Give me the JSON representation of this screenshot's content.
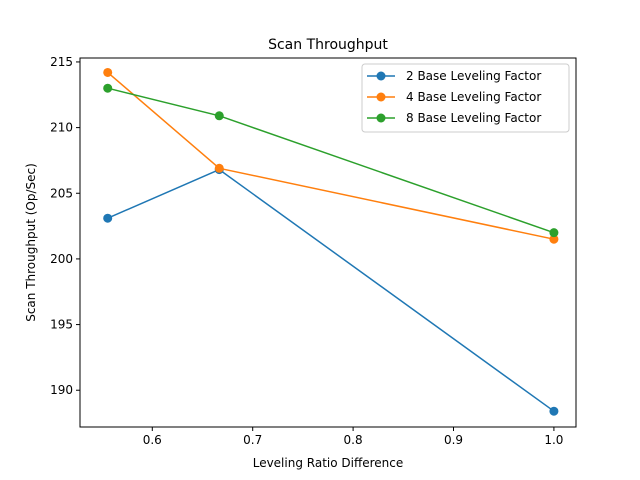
{
  "chart_data": {
    "type": "line",
    "title": "Scan Throughput",
    "xlabel": "Leveling Ratio Difference",
    "ylabel": "Scan Throughput (Op/Sec)",
    "xlim": [
      0.528,
      1.022
    ],
    "ylim": [
      187.2,
      215.3
    ],
    "xticks": [
      0.6,
      0.7,
      0.8,
      0.9,
      1.0
    ],
    "xtick_labels": [
      "0.6",
      "0.7",
      "0.8",
      "0.9",
      "1.0"
    ],
    "yticks": [
      190,
      195,
      200,
      205,
      210,
      215
    ],
    "ytick_labels": [
      "190",
      "195",
      "200",
      "205",
      "210",
      "215"
    ],
    "grid": false,
    "legend_position": "top-right",
    "series": [
      {
        "name": "2 Base Leveling Factor",
        "color": "#1f77b4",
        "x": [
          0.5556,
          0.6667,
          1.0
        ],
        "y": [
          203.1,
          206.8,
          188.4
        ]
      },
      {
        "name": "4 Base Leveling Factor",
        "color": "#ff7f0e",
        "x": [
          0.5556,
          0.6667,
          1.0
        ],
        "y": [
          214.2,
          206.9,
          201.5
        ]
      },
      {
        "name": "8 Base Leveling Factor",
        "color": "#2ca02c",
        "x": [
          0.5556,
          0.6667,
          1.0
        ],
        "y": [
          213.0,
          210.9,
          202.0
        ]
      }
    ]
  }
}
